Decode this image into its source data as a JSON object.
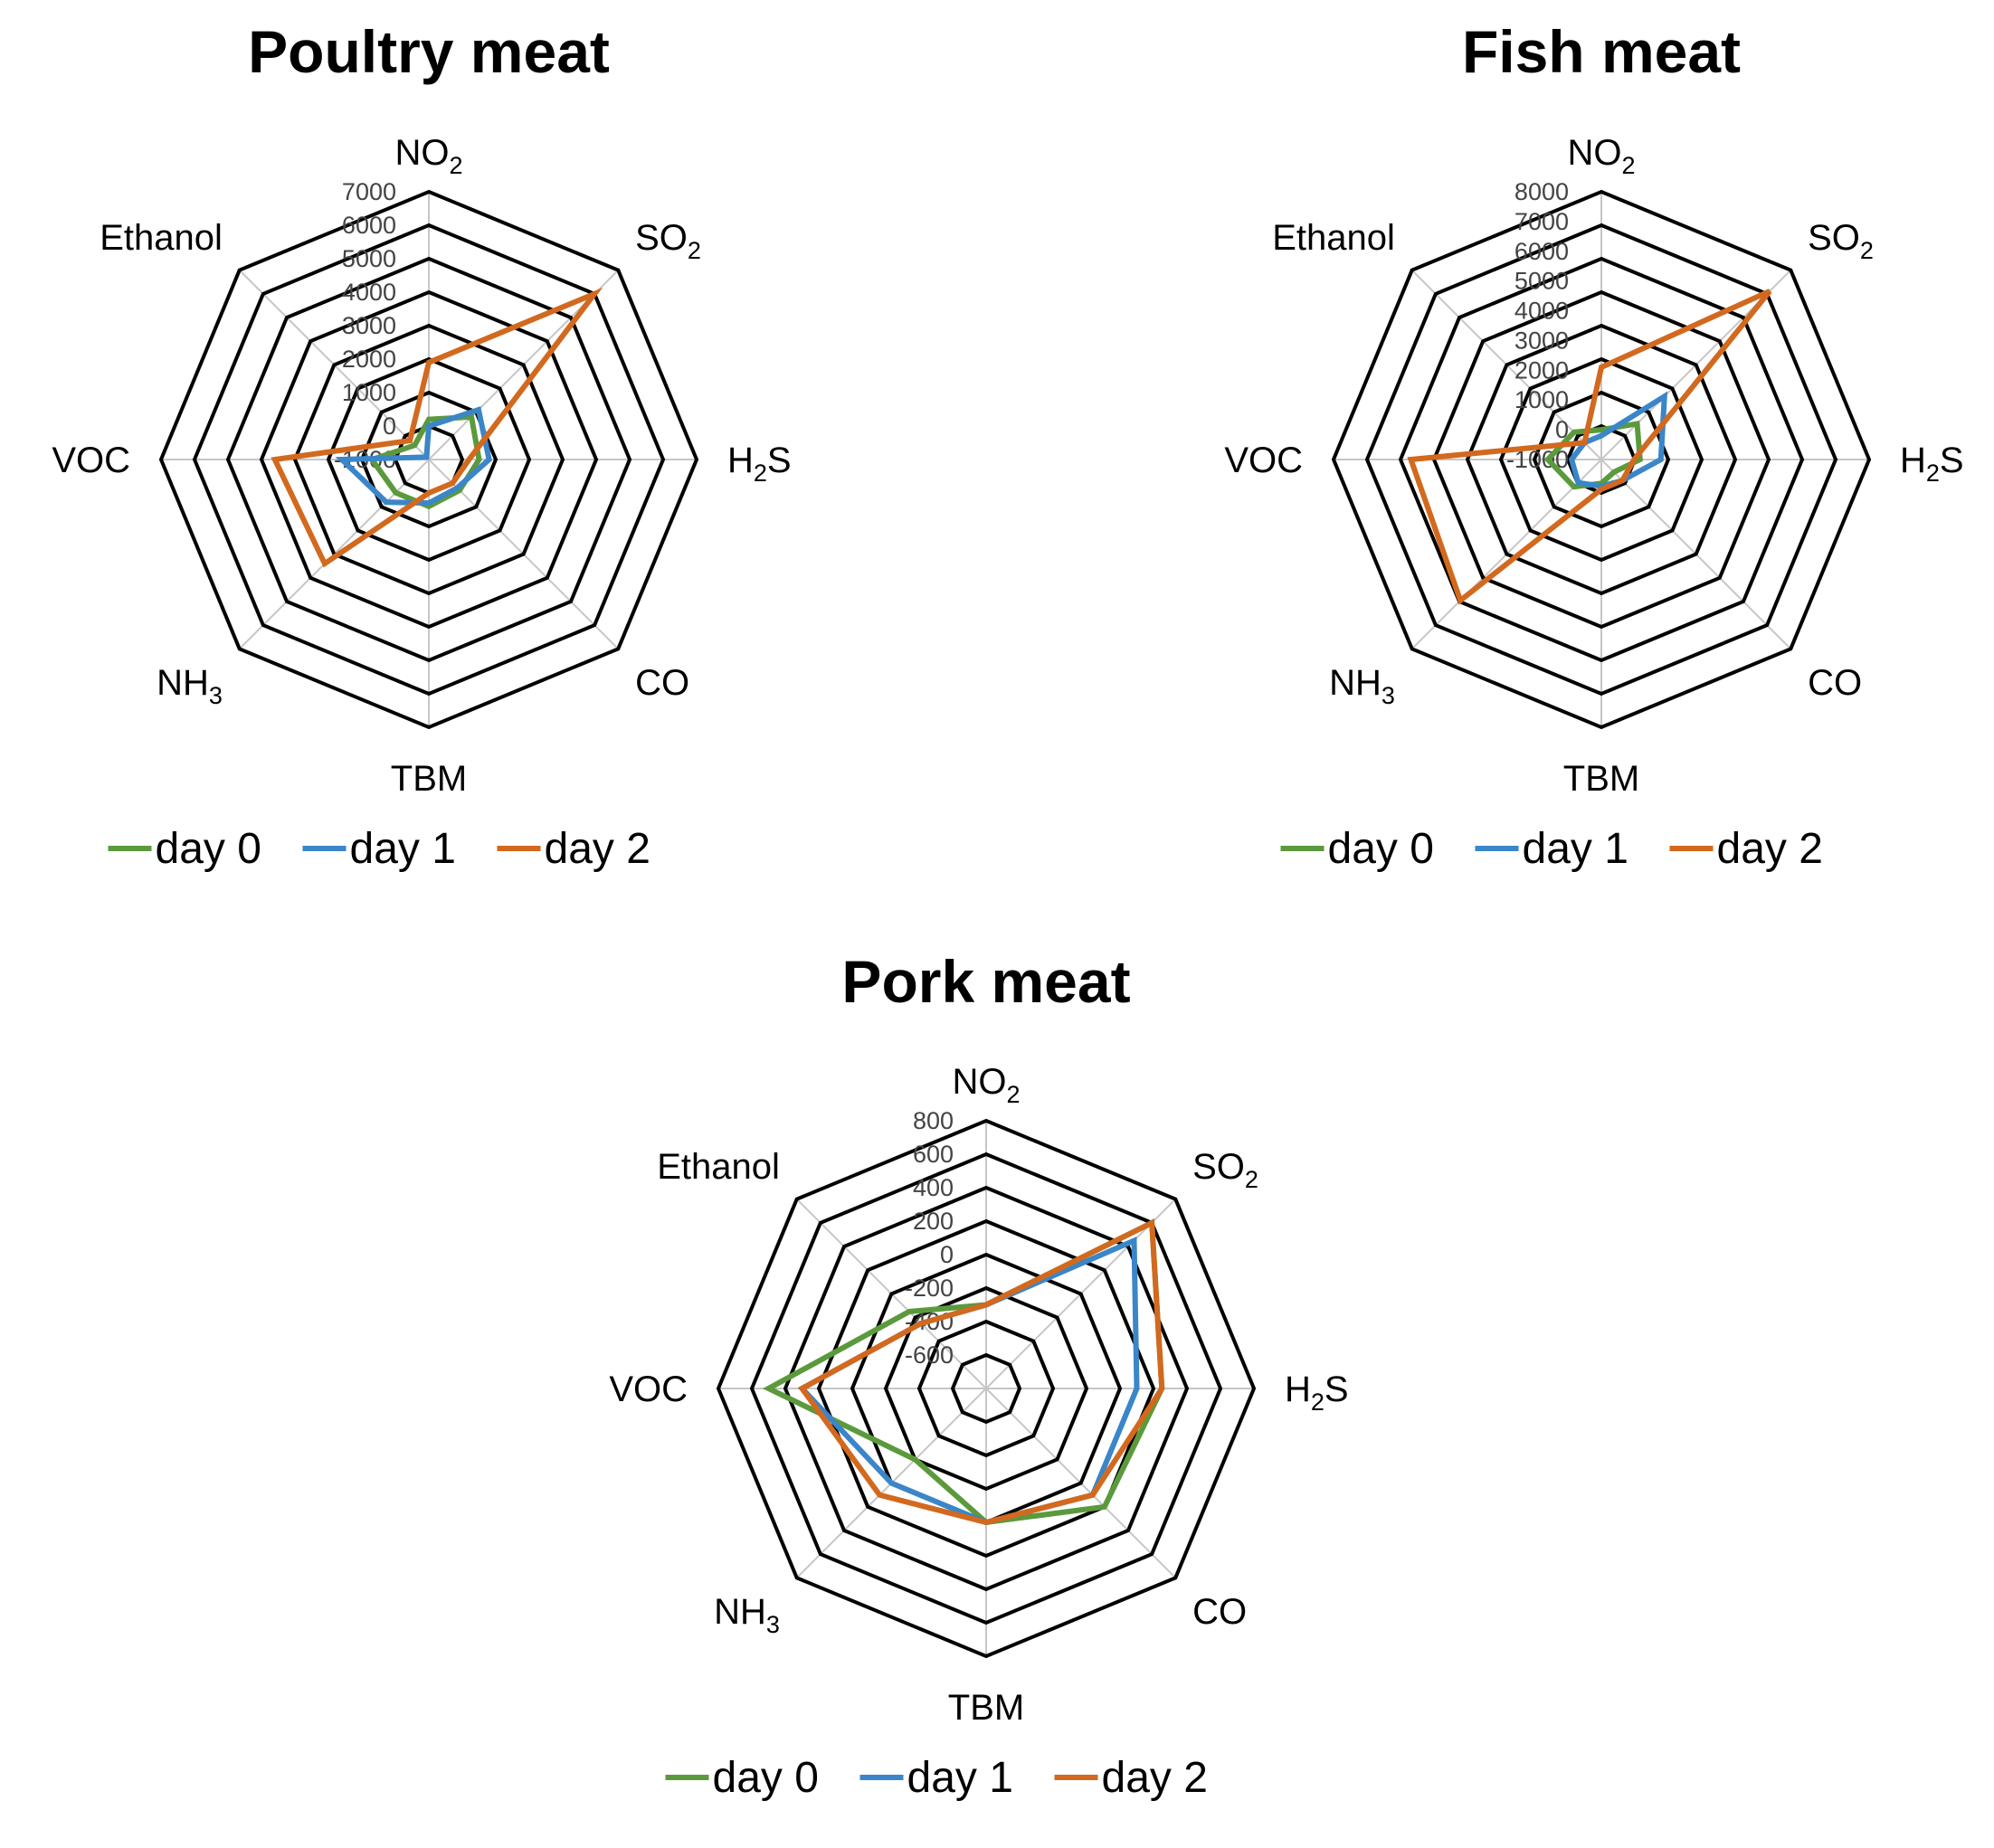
{
  "legend_colors": {
    "day 0": "#5b9a3c",
    "day 1": "#3a86c9",
    "day 2": "#d2691e"
  },
  "chart_data": [
    {
      "type": "radar",
      "title": "Poultry meat",
      "axes": [
        "NO2",
        "SO2",
        "H2S",
        "CO",
        "TBM",
        "NH3",
        "VOC",
        "Ethanol"
      ],
      "axis_display": [
        {
          "main": "NO",
          "sub": "2"
        },
        {
          "main": "SO",
          "sub": "2"
        },
        {
          "main": "H",
          "sub": "2",
          "post": "S"
        },
        {
          "main": "CO"
        },
        {
          "main": "TBM"
        },
        {
          "main": "NH",
          "sub": "3"
        },
        {
          "main": "VOC"
        },
        {
          "main": "Ethanol"
        }
      ],
      "rmin": -1000,
      "rmax": 7000,
      "ticks": [
        "-1000",
        "0",
        "1000",
        "2000",
        "3000",
        "4000",
        "5000",
        "6000",
        "7000"
      ],
      "grid": true,
      "legend_position": "bottom",
      "series": [
        {
          "name": "day 0",
          "values": [
            200,
            800,
            500,
            300,
            400,
            400,
            700,
            -400
          ]
        },
        {
          "name": "day 1",
          "values": [
            0,
            1100,
            800,
            200,
            300,
            800,
            1600,
            -900
          ]
        },
        {
          "name": "day 2",
          "values": [
            1900,
            6000,
            200,
            0,
            0,
            3400,
            3600,
            -200
          ]
        }
      ]
    },
    {
      "type": "radar",
      "title": "Fish meat",
      "axes": [
        "NO2",
        "SO2",
        "H2S",
        "CO",
        "TBM",
        "NH3",
        "VOC",
        "Ethanol"
      ],
      "axis_display": [
        {
          "main": "NO",
          "sub": "2"
        },
        {
          "main": "SO",
          "sub": "2"
        },
        {
          "main": "H",
          "sub": "2",
          "post": "S"
        },
        {
          "main": "CO"
        },
        {
          "main": "TBM"
        },
        {
          "main": "NH",
          "sub": "3"
        },
        {
          "main": "VOC"
        },
        {
          "main": "Ethanol"
        }
      ],
      "rmin": -1000,
      "rmax": 8000,
      "ticks": [
        "-1000",
        "0",
        "1000",
        "2000",
        "3000",
        "4000",
        "5000",
        "6000",
        "7000",
        "8000"
      ],
      "grid": true,
      "legend_position": "bottom",
      "series": [
        {
          "name": "day 0",
          "values": [
            0,
            700,
            300,
            -400,
            -200,
            300,
            800,
            300
          ]
        },
        {
          "name": "day 1",
          "values": [
            -200,
            2000,
            1000,
            0,
            -100,
            100,
            0,
            -200
          ]
        },
        {
          "name": "day 2",
          "values": [
            2100,
            7000,
            100,
            0,
            0,
            5700,
            5400,
            -200
          ]
        }
      ]
    },
    {
      "type": "radar",
      "title": "Pork meat",
      "axes": [
        "NO2",
        "SO2",
        "H2S",
        "CO",
        "TBM",
        "NH3",
        "VOC",
        "Ethanol"
      ],
      "axis_display": [
        {
          "main": "NO",
          "sub": "2"
        },
        {
          "main": "SO",
          "sub": "2"
        },
        {
          "main": "H",
          "sub": "2",
          "post": "S"
        },
        {
          "main": "CO"
        },
        {
          "main": "TBM"
        },
        {
          "main": "NH",
          "sub": "3"
        },
        {
          "main": "VOC"
        },
        {
          "main": "Ethanol"
        }
      ],
      "rmin": -800,
      "rmax": 800,
      "ticks": [
        "-600",
        "-400",
        "-200",
        "0",
        "200",
        "400",
        "600",
        "800"
      ],
      "grid": true,
      "legend_position": "bottom",
      "series": [
        {
          "name": "day 0",
          "values": [
            -300,
            600,
            250,
            200,
            0,
            -200,
            500,
            -150
          ]
        },
        {
          "name": "day 1",
          "values": [
            -300,
            450,
            100,
            100,
            0,
            0,
            300,
            -250
          ]
        },
        {
          "name": "day 2",
          "values": [
            -300,
            600,
            250,
            100,
            0,
            100,
            300,
            -250
          ]
        }
      ]
    }
  ]
}
